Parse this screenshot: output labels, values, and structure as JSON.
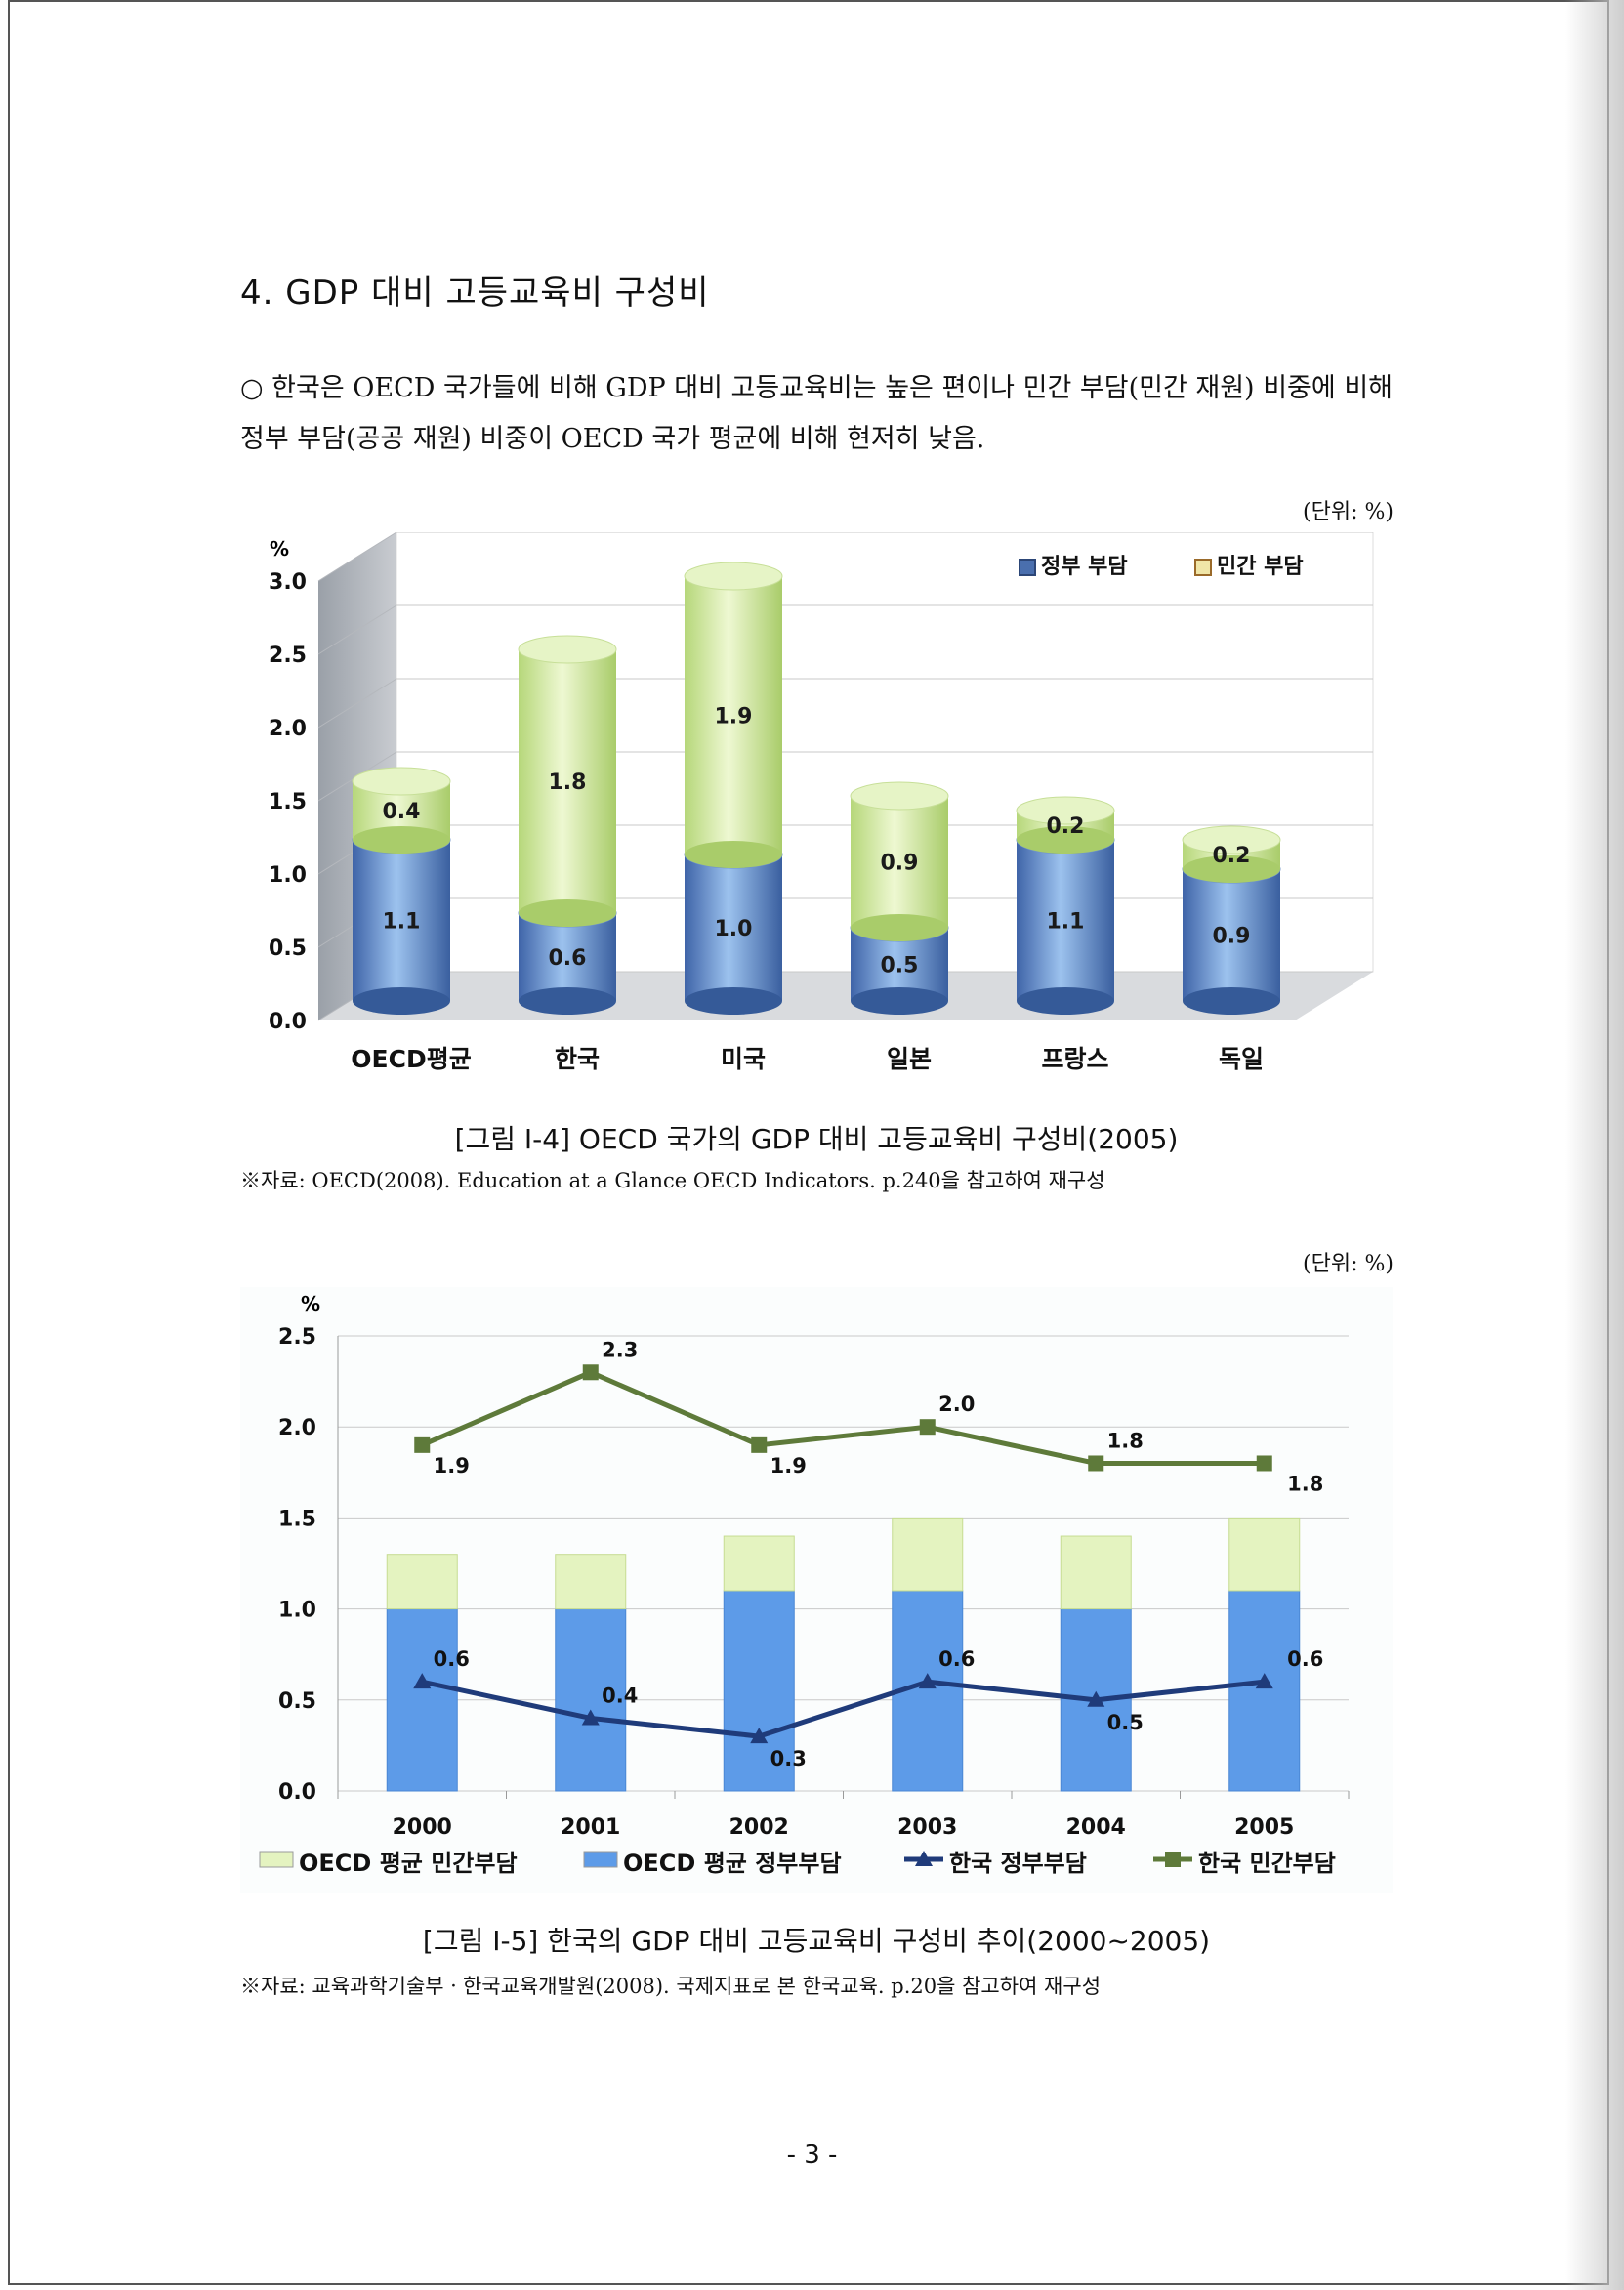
{
  "document": {
    "heading": "4. GDP 대비 고등교육비 구성비",
    "paragraph": "○ 한국은 OECD 국가들에 비해 GDP 대비 고등교육비는 높은 편이나 민간 부담(민간 재원) 비중에 비해 정부 부담(공공 재원) 비중이 OECD 국가 평균에 비해 현저히 낮음.",
    "unit_label": "(단위: %)",
    "page_number": "- 3 -"
  },
  "figures": [
    {
      "caption": "[그림 Ⅰ-4] OECD 국가의 GDP 대비 고등교육비 구성비(2005)",
      "source": "※자료: OECD(2008). Education at a Glance OECD Indicators. p.240을 참고하여 재구성"
    },
    {
      "caption": "[그림 Ⅰ-5] 한국의 GDP 대비 고등교육비 구성비 추이(2000~2005)",
      "source": "※자료: 교육과학기술부ㆍ한국교육개발원(2008). 국제지표로 본 한국교육. p.20을 참고하여 재구성"
    }
  ],
  "chart_data": [
    {
      "type": "bar",
      "stacked": true,
      "style": "3d-cylinder",
      "ylabel": "%",
      "ylim": [
        0,
        3.0
      ],
      "yticks": [
        "0.0",
        "0.5",
        "1.0",
        "1.5",
        "2.0",
        "2.5",
        "3.0"
      ],
      "categories": [
        "OECD평균",
        "한국",
        "미국",
        "일본",
        "프랑스",
        "독일"
      ],
      "series": [
        {
          "name": "정부 부담",
          "values": [
            1.1,
            0.6,
            1.0,
            0.5,
            1.1,
            0.9
          ],
          "labels": [
            "1.1",
            "0.6",
            "1.0",
            "0.5",
            "1.1",
            "0.9"
          ],
          "color": "#5b7fbf"
        },
        {
          "name": "민간 부담",
          "values": [
            0.4,
            1.8,
            1.9,
            0.9,
            0.2,
            0.2
          ],
          "labels": [
            "0.4",
            "1.8",
            "1.9",
            "0.9",
            "0.2",
            "0.2"
          ],
          "color": "#d8eda8"
        }
      ],
      "legend": "top-right",
      "grid": true
    },
    {
      "type": "bar+line",
      "ylabel": "%",
      "ylim": [
        0,
        2.5
      ],
      "yticks": [
        "0.0",
        "0.5",
        "1.0",
        "1.5",
        "2.0",
        "2.5"
      ],
      "categories": [
        "2000",
        "2001",
        "2002",
        "2003",
        "2004",
        "2005"
      ],
      "bar_series": [
        {
          "name": "OECD 평균 정부부담",
          "values": [
            1.0,
            1.0,
            1.1,
            1.1,
            1.0,
            1.1
          ],
          "color": "#5d9be8"
        },
        {
          "name": "OECD 평균 민간부담",
          "values": [
            0.3,
            0.3,
            0.3,
            0.4,
            0.4,
            0.4
          ],
          "color": "#e4f3c0"
        }
      ],
      "line_series": [
        {
          "name": "한국 정부부담",
          "values": [
            0.6,
            0.4,
            0.3,
            0.6,
            0.5,
            0.6
          ],
          "labels": [
            "0.6",
            "0.4",
            "0.3",
            "0.6",
            "0.5",
            "0.6"
          ],
          "marker": "triangle",
          "color": "#1f3b7a"
        },
        {
          "name": "한국 민간부담",
          "values": [
            1.9,
            2.3,
            1.9,
            2.0,
            1.8,
            1.8
          ],
          "labels": [
            "1.9",
            "2.3",
            "1.9",
            "2.0",
            "1.8",
            "1.8"
          ],
          "marker": "square",
          "color": "#5e7a3a"
        }
      ],
      "legend_order": [
        "OECD 평균 민간부담",
        "OECD 평균 정부부담",
        "한국 정부부담",
        "한국 민간부담"
      ],
      "legend": "bottom",
      "grid": true
    }
  ]
}
